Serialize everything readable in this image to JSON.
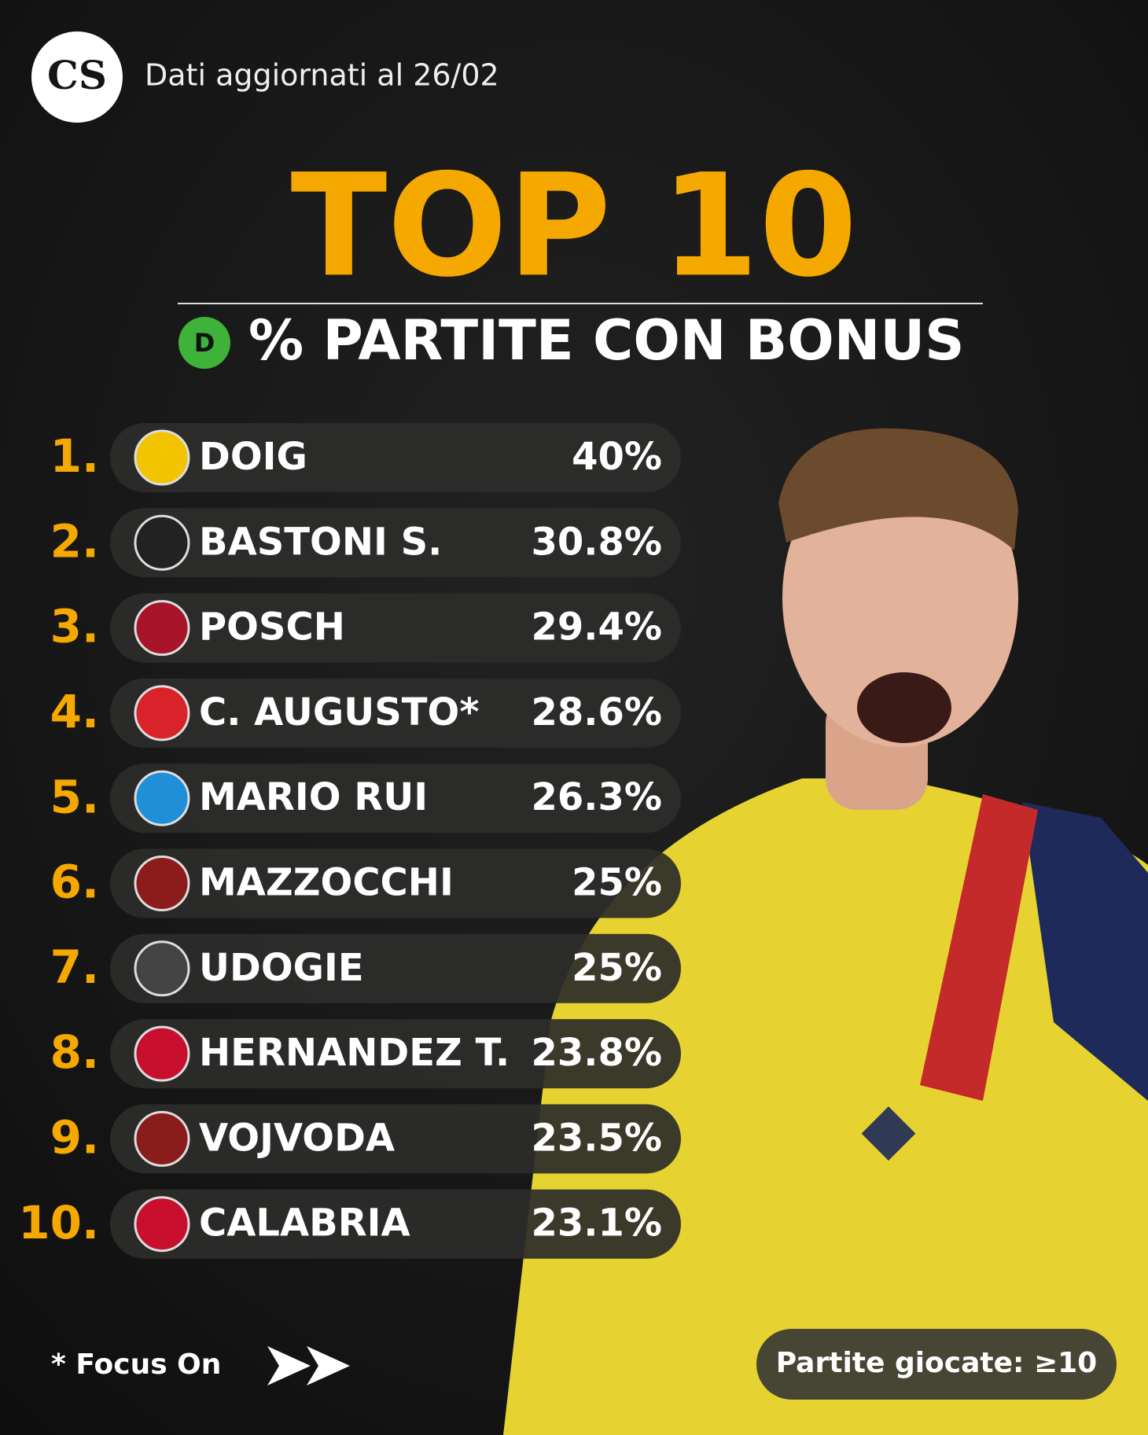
{
  "header": {
    "logo": "CS",
    "updated": "Dati aggiornati al 26/02"
  },
  "title": "TOP 10",
  "subtitle": {
    "badge": "D",
    "text": "% PARTITE CON BONUS"
  },
  "rows": [
    {
      "rank": "1.",
      "name": "DOIG",
      "value": "40%"
    },
    {
      "rank": "2.",
      "name": "BASTONI S.",
      "value": "30.8%"
    },
    {
      "rank": "3.",
      "name": "POSCH",
      "value": "29.4%"
    },
    {
      "rank": "4.",
      "name": "C. AUGUSTO*",
      "value": "28.6%"
    },
    {
      "rank": "5.",
      "name": "MARIO RUI",
      "value": "26.3%"
    },
    {
      "rank": "6.",
      "name": "MAZZOCCHI",
      "value": "25%"
    },
    {
      "rank": "7.",
      "name": "UDOGIE",
      "value": "25%"
    },
    {
      "rank": "8.",
      "name": "HERNANDEZ T.",
      "value": "23.8%"
    },
    {
      "rank": "9.",
      "name": "VOJVODA",
      "value": "23.5%"
    },
    {
      "rank": "10.",
      "name": "CALABRIA",
      "value": "23.1%"
    }
  ],
  "footer": {
    "note": "* Focus On",
    "filter": "Partite giocate: ≥10"
  }
}
